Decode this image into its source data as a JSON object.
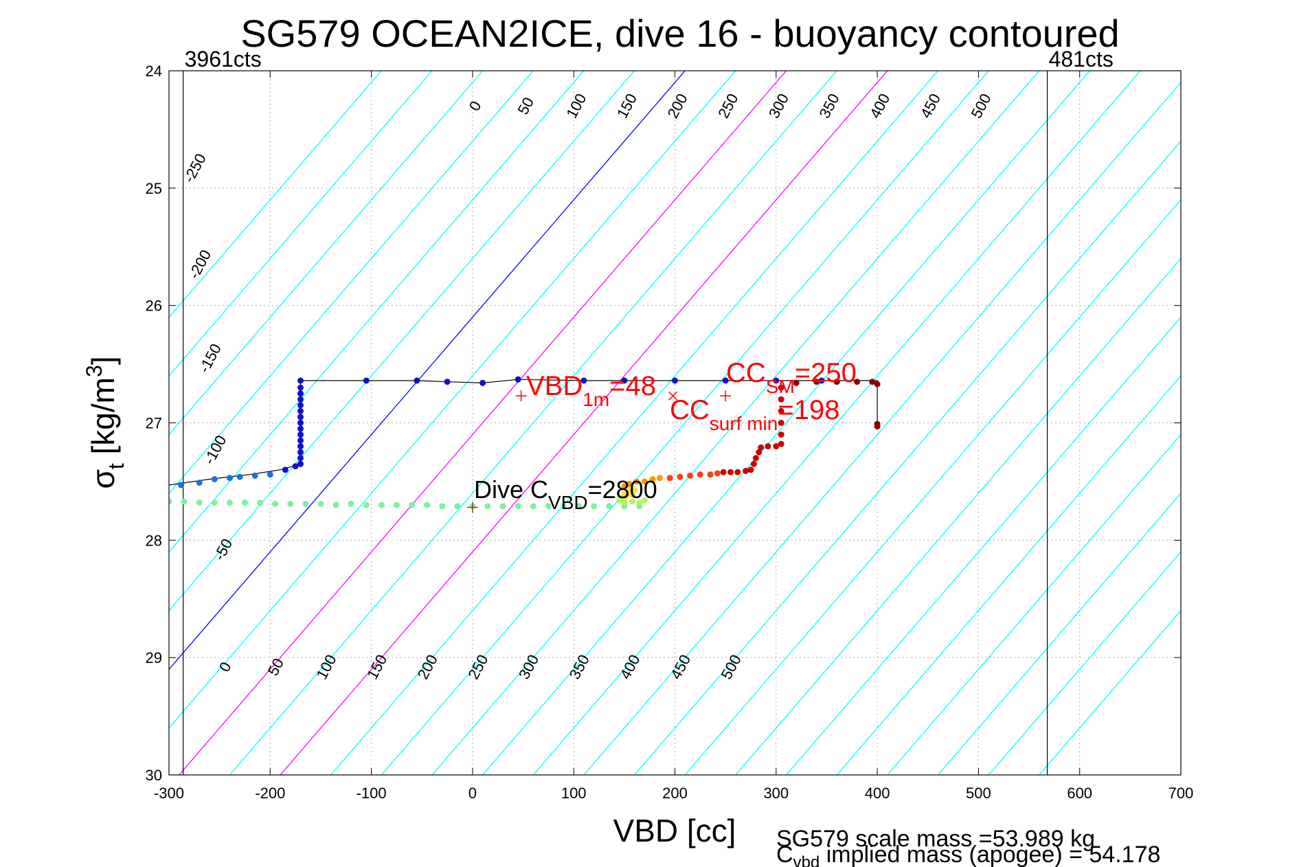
{
  "chart_data": {
    "type": "scatter",
    "title": "SG579 OCEAN2ICE, dive 16 - buoyancy contoured",
    "xlabel": "VBD [cc]",
    "ylabel_main": "σ",
    "ylabel_sub": "t",
    "ylabel_rest": " [kg/m",
    "ylabel_sup": "3",
    "ylabel_close": "]",
    "xlim": [
      -300,
      700
    ],
    "ylim": [
      24,
      30
    ],
    "y_reversed": true,
    "grid": true,
    "xticks": [
      -300,
      -200,
      -100,
      0,
      100,
      200,
      300,
      400,
      500,
      600,
      700
    ],
    "xtick_labels": [
      "-300",
      "-200",
      "-100",
      "0",
      "100",
      "200",
      "300",
      "400",
      "500",
      "600",
      "700"
    ],
    "yticks": [
      24,
      25,
      26,
      27,
      28,
      29,
      30
    ],
    "ytick_labels": [
      "24",
      "25",
      "26",
      "27",
      "28",
      "29",
      "30"
    ],
    "count_lines": [
      {
        "x": -286,
        "label": "3961cts"
      },
      {
        "x": 568,
        "label": "481cts"
      }
    ],
    "buoyancy_contours": {
      "slope_cc_per_sigma": 100,
      "levels": [
        -300,
        -250,
        -200,
        -150,
        -100,
        -50,
        0,
        50,
        100,
        150,
        200,
        250,
        300,
        350,
        400,
        450,
        500,
        550,
        600,
        650,
        700,
        750,
        800,
        850,
        900,
        950
      ],
      "highlight": [
        {
          "level": 0,
          "color": "#0000ff"
        },
        {
          "level": 100,
          "color": "#ff00ff"
        },
        {
          "level": 200,
          "color": "#ff00ff"
        }
      ],
      "default_color": "#00ffff",
      "labels": [
        {
          "text": "-250",
          "x": -270,
          "y": 24.85
        },
        {
          "text": "-200",
          "x": -265,
          "y": 25.67
        },
        {
          "text": "-150",
          "x": -255,
          "y": 26.47
        },
        {
          "text": "-100",
          "x": -250,
          "y": 27.25
        },
        {
          "text": "-50",
          "x": -242,
          "y": 28.1
        },
        {
          "text": "0",
          "x": -240,
          "y": 29.1
        },
        {
          "text": "50",
          "x": -190,
          "y": 29.1
        },
        {
          "text": "100",
          "x": -140,
          "y": 29.1
        },
        {
          "text": "150",
          "x": -90,
          "y": 29.1
        },
        {
          "text": "200",
          "x": -40,
          "y": 29.1
        },
        {
          "text": "250",
          "x": 10,
          "y": 29.1
        },
        {
          "text": "300",
          "x": 60,
          "y": 29.1
        },
        {
          "text": "350",
          "x": 110,
          "y": 29.1
        },
        {
          "text": "400",
          "x": 160,
          "y": 29.1
        },
        {
          "text": "450",
          "x": 210,
          "y": 29.1
        },
        {
          "text": "500",
          "x": 260,
          "y": 29.1
        },
        {
          "text": "0",
          "x": 7,
          "y": 24.32
        },
        {
          "text": "50",
          "x": 57,
          "y": 24.32
        },
        {
          "text": "100",
          "x": 107,
          "y": 24.32
        },
        {
          "text": "150",
          "x": 157,
          "y": 24.32
        },
        {
          "text": "200",
          "x": 207,
          "y": 24.32
        },
        {
          "text": "250",
          "x": 257,
          "y": 24.32
        },
        {
          "text": "300",
          "x": 307,
          "y": 24.32
        },
        {
          "text": "350",
          "x": 357,
          "y": 24.32
        },
        {
          "text": "400",
          "x": 407,
          "y": 24.32
        },
        {
          "text": "450",
          "x": 457,
          "y": 24.32
        },
        {
          "text": "500",
          "x": 507,
          "y": 24.32
        }
      ]
    },
    "series": [
      {
        "color": "#000000",
        "role": "trace",
        "points": [
          [
            -170,
            26.64
          ],
          [
            -105,
            26.64
          ],
          [
            -55,
            26.64
          ],
          [
            -25,
            26.65
          ],
          [
            10,
            26.66
          ],
          [
            45,
            26.63
          ],
          [
            110,
            26.64
          ],
          [
            150,
            26.64
          ],
          [
            200,
            26.64
          ],
          [
            250,
            26.64
          ],
          [
            300,
            26.64
          ],
          [
            345,
            26.64
          ],
          [
            400,
            26.64
          ],
          [
            400,
            26.66
          ],
          [
            400,
            27.03
          ]
        ]
      },
      {
        "color": "#000000",
        "role": "trace",
        "points": [
          [
            -170,
            26.64
          ],
          [
            -170,
            27.35
          ],
          [
            -190,
            27.4
          ],
          [
            -220,
            27.44
          ],
          [
            -260,
            27.48
          ],
          [
            -300,
            27.53
          ]
        ]
      },
      {
        "color": "#1010c8",
        "role": "descent-upper",
        "points": [
          [
            -105,
            26.64
          ],
          [
            -55,
            26.64
          ],
          [
            -25,
            26.65
          ],
          [
            10,
            26.66
          ],
          [
            45,
            26.63
          ],
          [
            110,
            26.64
          ],
          [
            150,
            26.64
          ],
          [
            200,
            26.64
          ],
          [
            250,
            26.64
          ],
          [
            300,
            26.64
          ],
          [
            345,
            26.64
          ],
          [
            -170,
            26.64
          ],
          [
            -170,
            26.7
          ],
          [
            -170,
            26.75
          ],
          [
            -170,
            26.8
          ],
          [
            -170,
            26.85
          ],
          [
            -170,
            26.9
          ],
          [
            -170,
            26.95
          ],
          [
            -170,
            27.0
          ],
          [
            -170,
            27.05
          ],
          [
            -170,
            27.1
          ],
          [
            -170,
            27.15
          ],
          [
            -170,
            27.2
          ],
          [
            -170,
            27.25
          ],
          [
            -170,
            27.3
          ],
          [
            -170,
            27.35
          ],
          [
            -175,
            27.37
          ],
          [
            -185,
            27.4
          ]
        ]
      },
      {
        "color": "#1e6fe6",
        "role": "descent-lower",
        "points": [
          [
            -200,
            27.44
          ],
          [
            -215,
            27.45
          ],
          [
            -230,
            27.46
          ],
          [
            -240,
            27.47
          ],
          [
            -255,
            27.48
          ],
          [
            -270,
            27.51
          ],
          [
            -288,
            27.53
          ]
        ]
      },
      {
        "color": "#7ff0a0",
        "role": "deep",
        "points": [
          [
            -300,
            27.67
          ],
          [
            -285,
            27.67
          ],
          [
            -270,
            27.68
          ],
          [
            -255,
            27.68
          ],
          [
            -240,
            27.68
          ],
          [
            -225,
            27.68
          ],
          [
            -210,
            27.68
          ],
          [
            -195,
            27.69
          ],
          [
            -180,
            27.69
          ],
          [
            -165,
            27.69
          ],
          [
            -150,
            27.69
          ],
          [
            -135,
            27.7
          ],
          [
            -120,
            27.69
          ],
          [
            -105,
            27.7
          ],
          [
            -90,
            27.7
          ],
          [
            -75,
            27.7
          ],
          [
            -60,
            27.7
          ],
          [
            -45,
            27.7
          ],
          [
            -30,
            27.71
          ],
          [
            -15,
            27.71
          ],
          [
            0,
            27.71
          ],
          [
            15,
            27.71
          ],
          [
            30,
            27.71
          ],
          [
            45,
            27.71
          ],
          [
            60,
            27.71
          ],
          [
            75,
            27.71
          ],
          [
            90,
            27.71
          ],
          [
            105,
            27.71
          ],
          [
            120,
            27.71
          ],
          [
            135,
            27.71
          ],
          [
            150,
            27.71
          ],
          [
            165,
            27.71
          ]
        ]
      },
      {
        "color": "#b8f060",
        "role": "transition",
        "points": [
          [
            150,
            27.68
          ],
          [
            158,
            27.67
          ],
          [
            165,
            27.68
          ],
          [
            170,
            27.66
          ],
          [
            150,
            27.64
          ],
          [
            145,
            27.66
          ]
        ]
      },
      {
        "color": "#ffe030",
        "role": "transition",
        "points": [
          [
            150,
            27.6
          ],
          [
            155,
            27.58
          ],
          [
            160,
            27.57
          ],
          [
            152,
            27.62
          ],
          [
            158,
            27.61
          ]
        ]
      },
      {
        "color": "#ff9a00",
        "role": "ascent",
        "points": [
          [
            150,
            27.54
          ],
          [
            155,
            27.52
          ],
          [
            162,
            27.5
          ],
          [
            170,
            27.5
          ],
          [
            178,
            27.48
          ],
          [
            185,
            27.47
          ]
        ]
      },
      {
        "color": "#ff4010",
        "role": "ascent",
        "points": [
          [
            195,
            27.47
          ],
          [
            205,
            27.46
          ],
          [
            215,
            27.45
          ],
          [
            225,
            27.44
          ],
          [
            235,
            27.44
          ],
          [
            242,
            27.43
          ]
        ]
      },
      {
        "color": "#cc0000",
        "role": "ascent",
        "points": [
          [
            248,
            27.42
          ],
          [
            255,
            27.42
          ],
          [
            262,
            27.42
          ],
          [
            270,
            27.41
          ],
          [
            275,
            27.4
          ],
          [
            278,
            27.35
          ],
          [
            280,
            27.3
          ],
          [
            283,
            27.25
          ],
          [
            285,
            27.21
          ],
          [
            292,
            27.2
          ],
          [
            300,
            27.2
          ],
          [
            305,
            27.18
          ],
          [
            305,
            27.1
          ],
          [
            305,
            27.0
          ],
          [
            305,
            26.9
          ],
          [
            305,
            26.8
          ],
          [
            305,
            26.7
          ]
        ]
      },
      {
        "color": "#8b0000",
        "role": "ascent",
        "points": [
          [
            320,
            26.66
          ],
          [
            340,
            26.65
          ],
          [
            360,
            26.65
          ],
          [
            380,
            26.65
          ],
          [
            395,
            26.65
          ],
          [
            400,
            26.67
          ],
          [
            400,
            27.01
          ],
          [
            400,
            27.03
          ]
        ]
      }
    ],
    "markers": [
      {
        "symbol": "+",
        "color": "#ff0000",
        "x": 48,
        "y": 26.77
      },
      {
        "symbol": "x",
        "color": "#ff0000",
        "x": 198,
        "y": 26.77
      },
      {
        "symbol": "+",
        "color": "#ff0000",
        "x": 250,
        "y": 26.77
      },
      {
        "symbol": "+",
        "color": "#8b4513",
        "x": 0,
        "y": 27.72
      }
    ],
    "annotations": {
      "vbd1m": {
        "main": "VBD",
        "sub": "1m",
        "rest": "=48"
      },
      "ccsm": {
        "main": "CC",
        "sub": "SM",
        "rest": "=250"
      },
      "ccsurf": {
        "main": "CC",
        "sub": "surf min",
        "rest": "=198"
      },
      "divec": {
        "main": "Dive C",
        "sub": "VBD",
        "rest": "=2800"
      }
    }
  },
  "notes": {
    "scale_mass": "SG579 scale mass =53.989 kg",
    "implied_main": "C",
    "implied_sub": "vbd",
    "implied_rest": " implied mass (apogee) = 54.178"
  }
}
